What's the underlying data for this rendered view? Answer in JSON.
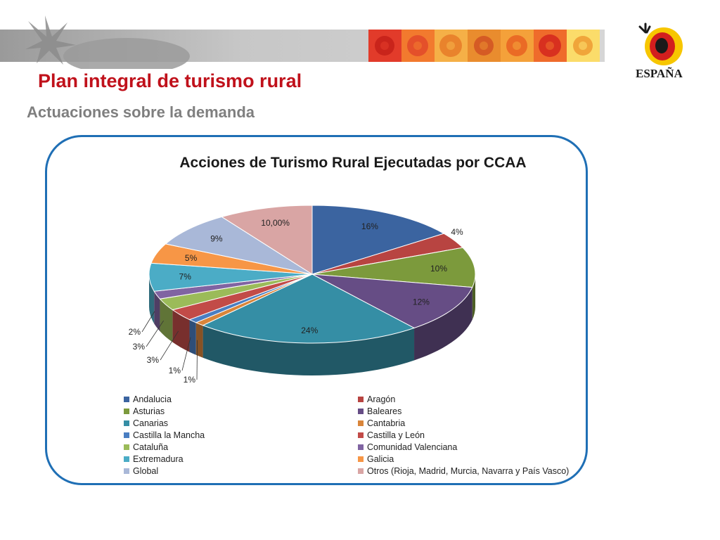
{
  "slide": {
    "title": "Plan integral de turismo rural",
    "subtitle": "Actuaciones sobre la demanda"
  },
  "logo": {
    "icon": "espana-sun-logo-icon",
    "text": "ESPAÑA"
  },
  "header": {
    "decoration": "gray-banner-with-sun-tiles"
  },
  "colors": {
    "title": "#c0111b",
    "subtitle": "#7f7f7f",
    "frame": "#1f6fb5"
  },
  "chart_data": {
    "type": "pie",
    "style": "3d-exploded",
    "title": "Acciones de Turismo Rural Ejecutadas por CCAA",
    "slices": [
      {
        "label": "Andalucia",
        "value": 16,
        "display": "16%",
        "color": "#3b64a0"
      },
      {
        "label": "Aragón",
        "value": 4,
        "display": "4%",
        "color": "#b84441"
      },
      {
        "label": "Asturias",
        "value": 10,
        "display": "10%",
        "color": "#7c9a3c"
      },
      {
        "label": "Baleares",
        "value": 12,
        "display": "12%",
        "color": "#664d85"
      },
      {
        "label": "Canarias",
        "value": 24,
        "display": "24%",
        "color": "#358ea5"
      },
      {
        "label": "Cantabria",
        "value": 1,
        "display": "1%",
        "color": "#d9853a"
      },
      {
        "label": "Castilla la Mancha",
        "value": 1,
        "display": "1%",
        "color": "#4a7ec2"
      },
      {
        "label": "Castilla y León",
        "value": 3,
        "display": "3%",
        "color": "#c24b48"
      },
      {
        "label": "Cataluña",
        "value": 3,
        "display": "3%",
        "color": "#9bbb59"
      },
      {
        "label": "Comunidad Valenciana",
        "value": 2,
        "display": "2%",
        "color": "#8064a2"
      },
      {
        "label": "Extremadura",
        "value": 7,
        "display": "7%",
        "color": "#4bacc6"
      },
      {
        "label": "Galicia",
        "value": 5,
        "display": "5%",
        "color": "#f79646"
      },
      {
        "label": "Global",
        "value": 9,
        "display": "9%",
        "color": "#a9b8d8"
      },
      {
        "label": "Otros (Rioja, Madrid, Murcia, Navarra y País Vasco)",
        "value": 10,
        "display": "10,00%",
        "color": "#d9a5a4"
      }
    ],
    "legend_position": "bottom"
  }
}
